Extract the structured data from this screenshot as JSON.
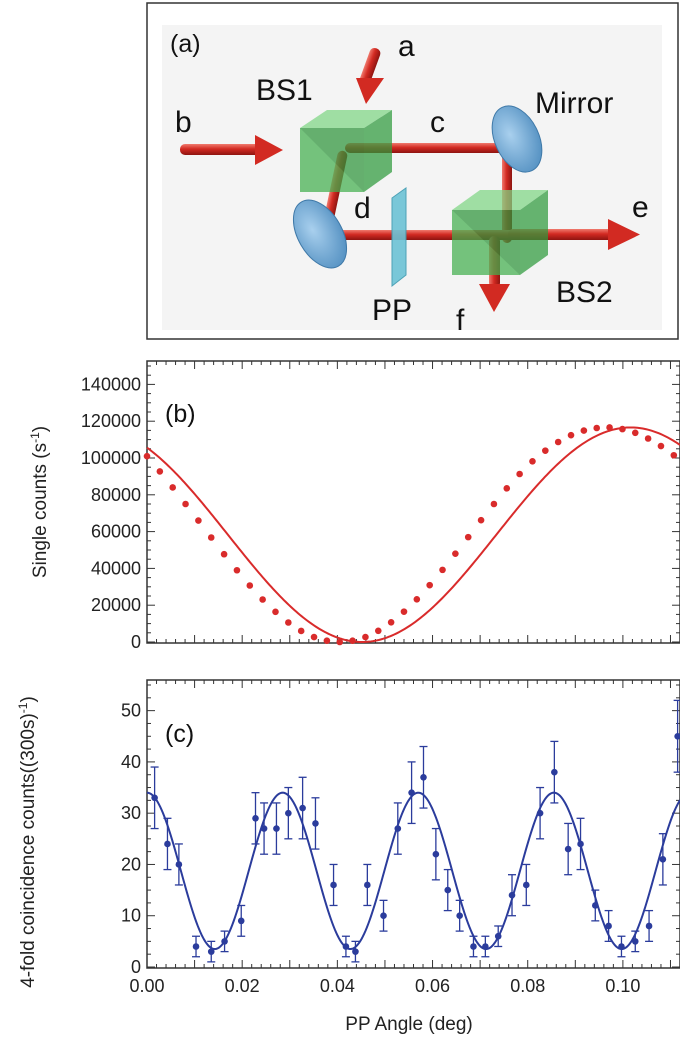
{
  "panel_a": {
    "label": "(a)",
    "components": {
      "bs1": "BS1",
      "bs2": "BS2",
      "mirror": "Mirror",
      "pp": "PP"
    },
    "ports": {
      "a": "a",
      "b": "b",
      "c": "c",
      "d": "d",
      "e": "e",
      "f": "f"
    },
    "colors": {
      "beam": "#d22a22",
      "beamsplitter": "#3cbb4a",
      "mirror": "#6fa9d4",
      "plate": "#6cc3d6"
    }
  },
  "chart_data": [
    {
      "panel": "(b)",
      "type": "line",
      "ylabel": "Single counts",
      "ylabel_unit": "(s",
      "ylabel_unit_sup": "-1",
      "ylabel_unit_close": ")",
      "xlim": [
        0,
        0.112
      ],
      "ylim": [
        0,
        150000
      ],
      "yticks": [
        0,
        20000,
        40000,
        60000,
        80000,
        100000,
        120000,
        140000
      ],
      "ytick_labels": [
        "0",
        "20000",
        "40000",
        "60000",
        "80000",
        "100000",
        "120000",
        "140000"
      ],
      "color": "#d92b2b",
      "series": [
        {
          "x": [
            0.0,
            0.0027,
            0.0054,
            0.0081,
            0.0108,
            0.0135,
            0.0162,
            0.0189,
            0.0216,
            0.0243,
            0.027,
            0.0297,
            0.0324,
            0.0351,
            0.0378,
            0.0405,
            0.0432,
            0.0459,
            0.0486,
            0.0513,
            0.054,
            0.0567,
            0.0594,
            0.0621,
            0.0648,
            0.0675,
            0.0702,
            0.0729,
            0.0756,
            0.0783,
            0.081,
            0.0837,
            0.0864,
            0.0891,
            0.0918,
            0.0945,
            0.0972,
            0.0999,
            0.1026,
            0.1053,
            0.108,
            0.1107
          ],
          "y": [
            101000,
            92700,
            84000,
            75000,
            66000,
            56800,
            47700,
            39000,
            30700,
            23100,
            16400,
            10600,
            6000,
            2700,
            700,
            0,
            700,
            2700,
            6100,
            10700,
            16500,
            23200,
            30900,
            39200,
            48000,
            57000,
            66200,
            75000,
            83500,
            91300,
            98200,
            104000,
            108700,
            112400,
            114900,
            116300,
            116600,
            115700,
            113700,
            110600,
            106500,
            101500
          ]
        }
      ],
      "fit": {
        "model": "A - B*cos(2*pi*(x - x0)/P)",
        "A": 58300,
        "B": 58300,
        "x0": 0.0452,
        "P": 0.1128
      }
    },
    {
      "panel": "(c)",
      "type": "scatter",
      "ylabel": "4-fold coincidence counts",
      "ylabel_unit": "((300s)",
      "ylabel_unit_sup": "-1",
      "ylabel_unit_close": ")",
      "xlabel": "PP Angle (deg)",
      "xlim": [
        0,
        0.112
      ],
      "ylim": [
        0,
        55
      ],
      "xticks": [
        0,
        0.02,
        0.04,
        0.06,
        0.08,
        0.1
      ],
      "xtick_labels": [
        "0.00",
        "0.02",
        "0.04",
        "0.06",
        "0.08",
        "0.10"
      ],
      "yticks": [
        0,
        10,
        20,
        30,
        40,
        50
      ],
      "ytick_labels": [
        "0",
        "10",
        "20",
        "30",
        "40",
        "50"
      ],
      "color": "#2b3c9c",
      "series": [
        {
          "x": [
            0.0016,
            0.0043,
            0.0067,
            0.0103,
            0.0135,
            0.0163,
            0.0198,
            0.0228,
            0.0246,
            0.0272,
            0.0297,
            0.0327,
            0.0354,
            0.0392,
            0.0418,
            0.0438,
            0.0463,
            0.0497,
            0.0527,
            0.0556,
            0.0581,
            0.0607,
            0.0632,
            0.0657,
            0.0686,
            0.0711,
            0.0738,
            0.0767,
            0.0797,
            0.0826,
            0.0856,
            0.0885,
            0.0911,
            0.0942,
            0.097,
            0.0997,
            0.1026,
            0.1055,
            0.1084,
            0.1115
          ],
          "y": [
            33,
            24,
            20,
            4,
            3,
            5,
            9,
            29,
            27,
            27,
            30,
            31,
            28,
            16,
            4,
            3,
            16,
            10,
            27,
            34,
            37,
            22,
            15,
            10,
            4,
            4,
            6,
            14,
            16,
            30,
            38,
            23,
            24,
            12,
            8,
            4,
            5,
            8,
            21,
            45
          ],
          "err": [
            6,
            5,
            4,
            2,
            2,
            2,
            3,
            5,
            5,
            5,
            5,
            6,
            5,
            4,
            2,
            2,
            4,
            3,
            5,
            6,
            6,
            5,
            4,
            3,
            2,
            2,
            2,
            4,
            4,
            5,
            6,
            5,
            5,
            3,
            3,
            2,
            2,
            3,
            5,
            7
          ]
        }
      ],
      "fit": {
        "model": "A + B*cos(2*pi*(x - x0)/P)",
        "A": 18.75,
        "B": 15.25,
        "x0": 0.0285,
        "P": 0.0285
      }
    }
  ]
}
